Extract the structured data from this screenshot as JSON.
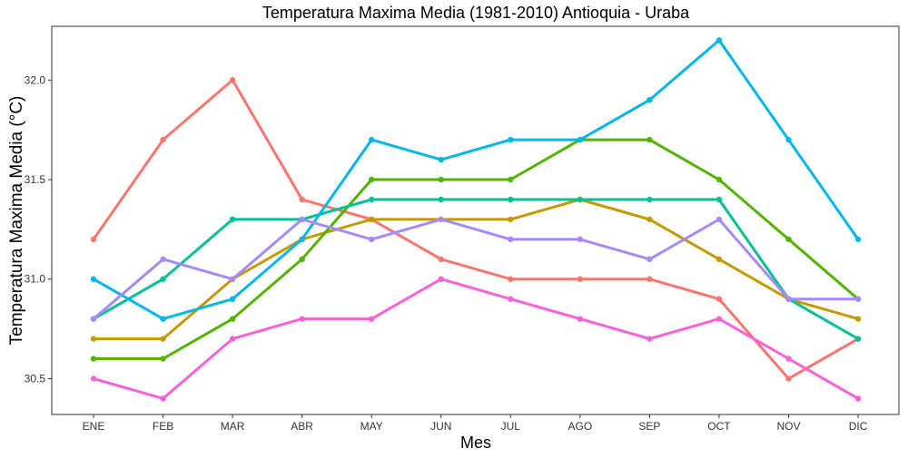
{
  "chart_data": {
    "type": "line",
    "title": "Temperatura Maxima Media (1981-2010)  Antioquia - Uraba",
    "xlabel": "Mes",
    "ylabel": "Temperatura Maxima Media  (°C)",
    "categories": [
      "ENE",
      "FEB",
      "MAR",
      "ABR",
      "MAY",
      "JUN",
      "JUL",
      "AGO",
      "SEP",
      "OCT",
      "NOV",
      "DIC"
    ],
    "ylim": [
      30.32,
      32.27
    ],
    "yticks": [
      "30.5",
      "31.0",
      "31.5",
      "32.0"
    ],
    "grid": false,
    "legend": "none",
    "series": [
      {
        "color": "#F8766D",
        "values": [
          31.2,
          31.7,
          32.0,
          31.4,
          31.3,
          31.1,
          31.0,
          31.0,
          31.0,
          30.9,
          30.5,
          30.7
        ]
      },
      {
        "color": "#C49A00",
        "values": [
          30.7,
          30.7,
          31.0,
          31.2,
          31.3,
          31.3,
          31.3,
          31.4,
          31.3,
          31.1,
          30.9,
          30.8
        ]
      },
      {
        "color": "#53B400",
        "values": [
          30.6,
          30.6,
          30.8,
          31.1,
          31.5,
          31.5,
          31.5,
          31.7,
          31.7,
          31.5,
          31.2,
          30.9
        ]
      },
      {
        "color": "#00C094",
        "values": [
          30.8,
          31.0,
          31.3,
          31.3,
          31.4,
          31.4,
          31.4,
          31.4,
          31.4,
          31.4,
          30.9,
          30.7
        ]
      },
      {
        "color": "#00B6EB",
        "values": [
          31.0,
          30.8,
          30.9,
          31.2,
          31.7,
          31.6,
          31.7,
          31.7,
          31.9,
          32.2,
          31.7,
          31.2
        ]
      },
      {
        "color": "#A58AFF",
        "values": [
          30.8,
          31.1,
          31.0,
          31.3,
          31.2,
          31.3,
          31.2,
          31.2,
          31.1,
          31.3,
          30.9,
          30.9
        ]
      },
      {
        "color": "#FB61D7",
        "values": [
          30.5,
          30.4,
          30.7,
          30.8,
          30.8,
          31.0,
          30.9,
          30.8,
          30.7,
          30.8,
          30.6,
          30.4
        ]
      }
    ]
  }
}
